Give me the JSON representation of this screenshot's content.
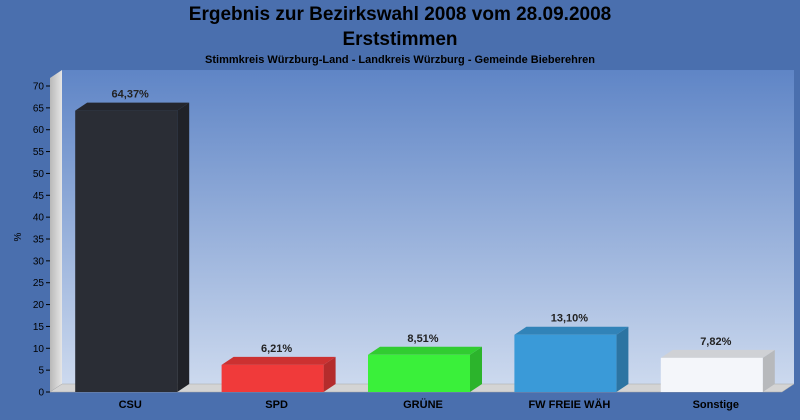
{
  "chart_data": {
    "type": "bar",
    "title": "Ergebnis zur Bezirkswahl 2008 vom 28.09.2008",
    "title2": "Erststimmen",
    "subtitle": "Stimmkreis Würzburg-Land - Landkreis Würzburg - Gemeinde Bieberehren",
    "ylabel": "%",
    "xlabel": "",
    "ylim": [
      0,
      70
    ],
    "yticks": [
      0,
      5,
      10,
      15,
      20,
      25,
      30,
      35,
      40,
      45,
      50,
      55,
      60,
      65,
      70
    ],
    "grid": false,
    "categories": [
      "CSU",
      "SPD",
      "GRÜNE",
      "FW FREIE WÄH",
      "Sonstige"
    ],
    "values": [
      64.37,
      6.21,
      8.51,
      13.1,
      7.82
    ],
    "value_labels": [
      "64,37%",
      "6,21%",
      "8,51%",
      "13,10%",
      "7,82%"
    ],
    "colors": [
      "#2a2d35",
      "#f03a3a",
      "#3af03a",
      "#3a9ad8",
      "#f4f6fa"
    ],
    "background_color": "#4a6fae"
  }
}
